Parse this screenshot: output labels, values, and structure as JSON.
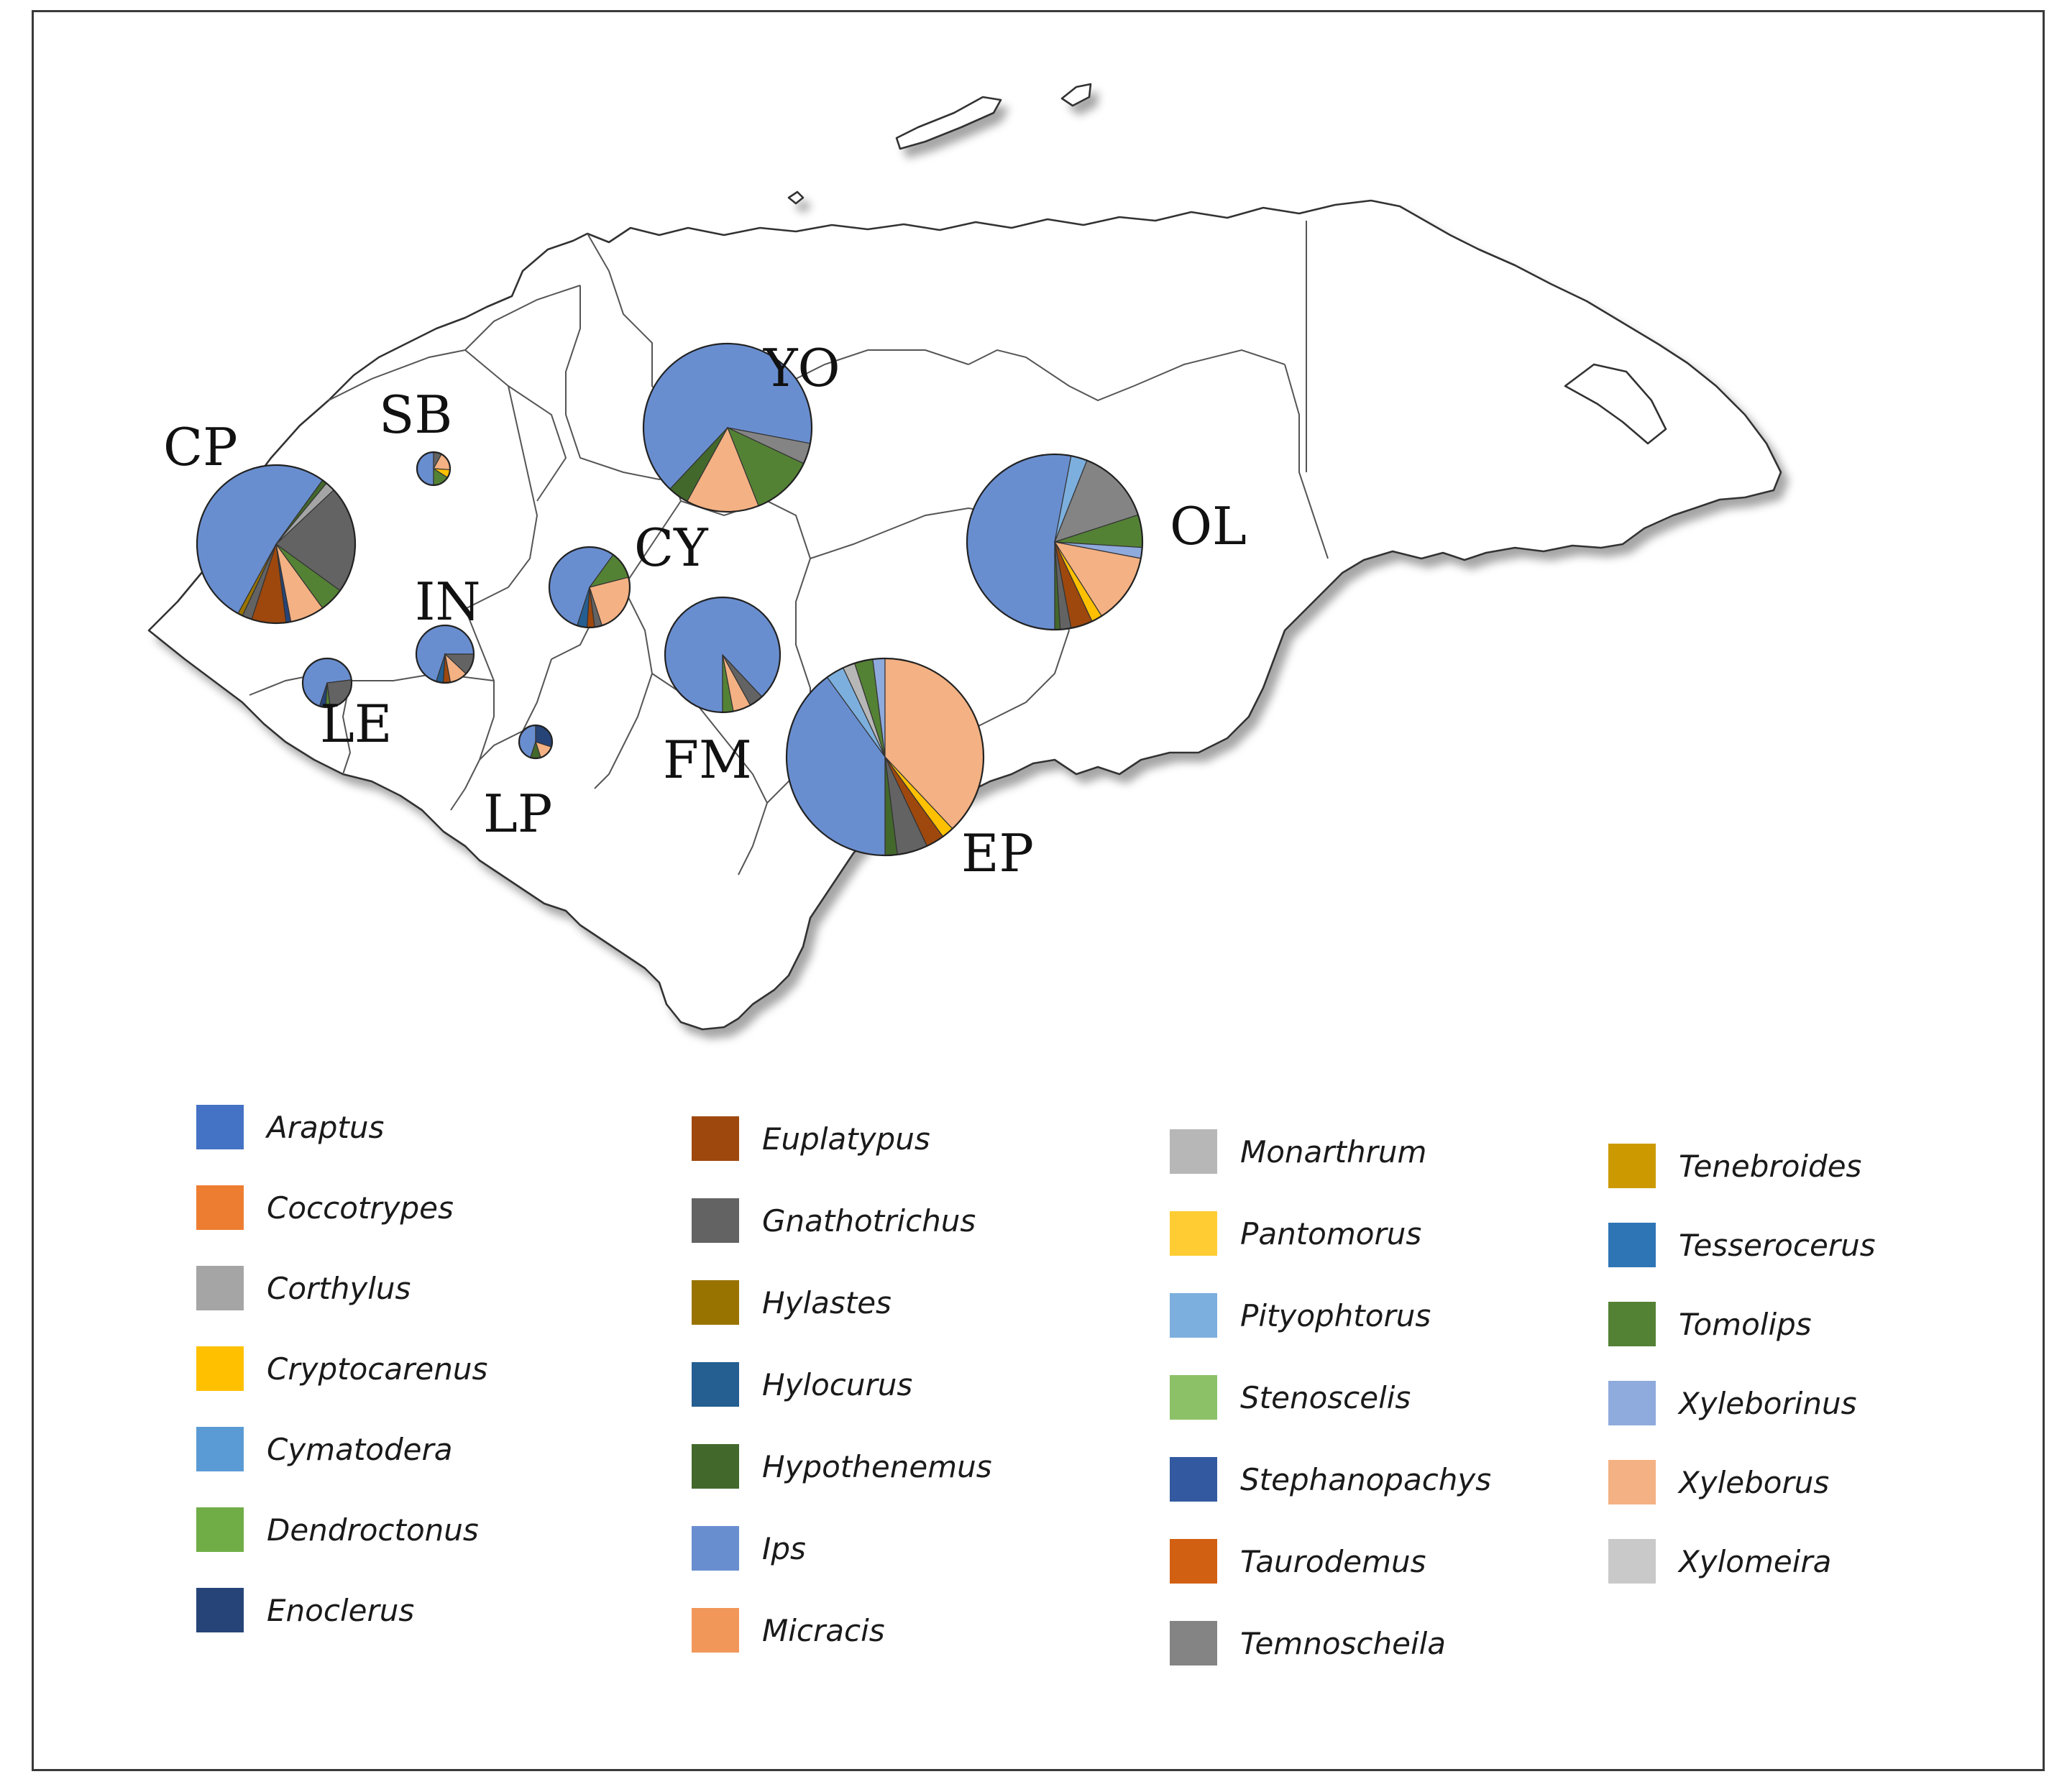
{
  "colors": {
    "Araptus": "#4472c4",
    "Coccotrypes": "#ed7d31",
    "Corthylus": "#a5a5a5",
    "Cryptocarenus": "#ffc000",
    "Cymatodera": "#5b9bd5",
    "Dendroctonus": "#70ad47",
    "Enoclerus": "#264478",
    "Euplatypus": "#9e480e",
    "Gnathotrichus": "#636363",
    "Hylastes": "#997300",
    "Hylocurus": "#255e91",
    "Hypothenemus": "#43682b",
    "Ips": "#698ed0",
    "Micracis": "#f1975a",
    "Monarthrum": "#b7b7b7",
    "Pantomorus": "#ffcd33",
    "Pityophtorus": "#7cafdd",
    "Stenoscelis": "#8cc168",
    "Stephanopachys": "#335aa1",
    "Taurodemus": "#d26012",
    "Temnoscheila": "#848484",
    "Tenebroides": "#cc9a00",
    "Tesserocerus": "#2e75b6",
    "Tomolips": "#548235",
    "Xyleborinus": "#8faadc",
    "Xyleborus": "#f4b183",
    "Xylomeira": "#c9c9c9"
  },
  "legend": {
    "columns": [
      [
        "Araptus",
        "Coccotrypes",
        "Corthylus",
        "Cryptocarenus",
        "Cymatodera",
        "Dendroctonus",
        "Enoclerus"
      ],
      [
        "Euplatypus",
        "Gnathotrichus",
        "Hylastes",
        "Hylocurus",
        "Hypothenemus",
        "Ips",
        "Micracis"
      ],
      [
        "Monarthrum",
        "Pantomorus",
        "Pityophtorus",
        "Stenoscelis",
        "Stephanopachys",
        "Taurodemus",
        "Temnoscheila"
      ],
      [
        "Tenebroides",
        "Tesserocerus",
        "Tomolips",
        "Xyleborinus",
        "Xyleborus",
        "Xylomeira"
      ]
    ]
  },
  "regions": [
    {
      "code": "CP",
      "slices": [
        {
          "genus": "Ips",
          "value": 52
        },
        {
          "genus": "Hypothenemus",
          "value": 1
        },
        {
          "genus": "Corthylus",
          "value": 2
        },
        {
          "genus": "Gnathotrichus",
          "value": 22
        },
        {
          "genus": "Tomolips",
          "value": 5
        },
        {
          "genus": "Xyleborus",
          "value": 7
        },
        {
          "genus": "Enoclerus",
          "value": 1
        },
        {
          "genus": "Euplatypus",
          "value": 7
        },
        {
          "genus": "Gnathotrichus",
          "value": 2
        },
        {
          "genus": "Hylastes",
          "value": 1
        }
      ]
    },
    {
      "code": "SB",
      "slices": [
        {
          "genus": "Ips",
          "value": 50
        },
        {
          "genus": "Gnathotrichus",
          "value": 8
        },
        {
          "genus": "Xyleborus",
          "value": 18
        },
        {
          "genus": "Cryptocarenus",
          "value": 8
        },
        {
          "genus": "Tomolips",
          "value": 16
        }
      ]
    },
    {
      "code": "YO",
      "slices": [
        {
          "genus": "Ips",
          "value": 66
        },
        {
          "genus": "Temnoscheila",
          "value": 4
        },
        {
          "genus": "Tomolips",
          "value": 12
        },
        {
          "genus": "Xyleborus",
          "value": 14
        },
        {
          "genus": "Hypothenemus",
          "value": 4
        }
      ]
    },
    {
      "code": "CY",
      "slices": [
        {
          "genus": "Ips",
          "value": 55
        },
        {
          "genus": "Tomolips",
          "value": 11
        },
        {
          "genus": "Xyleborus",
          "value": 24
        },
        {
          "genus": "Gnathotrichus",
          "value": 3
        },
        {
          "genus": "Euplatypus",
          "value": 3
        },
        {
          "genus": "Hylocurus",
          "value": 4
        }
      ]
    },
    {
      "code": "IN",
      "slices": [
        {
          "genus": "Ips",
          "value": 70
        },
        {
          "genus": "Gnathotrichus",
          "value": 12
        },
        {
          "genus": "Xyleborus",
          "value": 10
        },
        {
          "genus": "Euplatypus",
          "value": 4
        },
        {
          "genus": "Hylocurus",
          "value": 4
        }
      ]
    },
    {
      "code": "LE",
      "slices": [
        {
          "genus": "Ips",
          "value": 68
        },
        {
          "genus": "Gnathotrichus",
          "value": 25
        },
        {
          "genus": "Tomolips",
          "value": 3
        },
        {
          "genus": "Enoclerus",
          "value": 4
        }
      ]
    },
    {
      "code": "LP",
      "slices": [
        {
          "genus": "Ips",
          "value": 45
        },
        {
          "genus": "Enoclerus",
          "value": 30
        },
        {
          "genus": "Xyleborus",
          "value": 15
        },
        {
          "genus": "Hypothenemus",
          "value": 10
        }
      ]
    },
    {
      "code": "FM",
      "slices": [
        {
          "genus": "Ips",
          "value": 88
        },
        {
          "genus": "Gnathotrichus",
          "value": 4
        },
        {
          "genus": "Xyleborus",
          "value": 5
        },
        {
          "genus": "Tomolips",
          "value": 3
        }
      ]
    },
    {
      "code": "OL",
      "slices": [
        {
          "genus": "Ips",
          "value": 53
        },
        {
          "genus": "Pityophtorus",
          "value": 3
        },
        {
          "genus": "Temnoscheila",
          "value": 14
        },
        {
          "genus": "Tomolips",
          "value": 6
        },
        {
          "genus": "Xyleborinus",
          "value": 2
        },
        {
          "genus": "Xyleborus",
          "value": 13
        },
        {
          "genus": "Cryptocarenus",
          "value": 2
        },
        {
          "genus": "Euplatypus",
          "value": 4
        },
        {
          "genus": "Gnathotrichus",
          "value": 2
        },
        {
          "genus": "Hypothenemus",
          "value": 1
        }
      ]
    },
    {
      "code": "EP",
      "slices": [
        {
          "genus": "Ips",
          "value": 40
        },
        {
          "genus": "Pityophtorus",
          "value": 3
        },
        {
          "genus": "Monarthrum",
          "value": 2
        },
        {
          "genus": "Tomolips",
          "value": 3
        },
        {
          "genus": "Xyleborinus",
          "value": 2
        },
        {
          "genus": "Xyleborus",
          "value": 38
        },
        {
          "genus": "Cryptocarenus",
          "value": 2
        },
        {
          "genus": "Euplatypus",
          "value": 3
        },
        {
          "genus": "Gnathotrichus",
          "value": 5
        },
        {
          "genus": "Hypothenemus",
          "value": 2
        }
      ]
    }
  ]
}
